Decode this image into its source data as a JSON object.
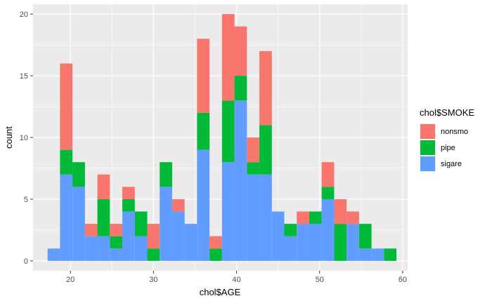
{
  "chart_data": {
    "type": "bar",
    "subtype": "stacked-histogram",
    "xlabel": "chol$AGE",
    "ylabel": "count",
    "xlim": [
      15.5,
      60.6
    ],
    "ylim": [
      -0.8,
      20.8
    ],
    "x_ticks": [
      20,
      30,
      40,
      50,
      60
    ],
    "y_ticks": [
      0,
      5,
      10,
      15,
      20
    ],
    "grid": true,
    "legend": {
      "title": "chol$SMOKE",
      "position": "right"
    },
    "bin_width": 1.5,
    "bin_centers": [
      18.0,
      19.5,
      21.0,
      22.5,
      24.0,
      25.5,
      27.0,
      28.5,
      30.0,
      31.5,
      33.0,
      34.5,
      36.0,
      37.5,
      39.0,
      40.5,
      42.0,
      43.5,
      45.0,
      46.5,
      48.0,
      49.5,
      51.0,
      52.5,
      54.0,
      55.5,
      57.0,
      58.5
    ],
    "series": [
      {
        "name": "nonsmo",
        "color": "#F8766D",
        "values": [
          0,
          7,
          0,
          1,
          2,
          1,
          1,
          0,
          2,
          0,
          1,
          0,
          6,
          1,
          7,
          4,
          2,
          6,
          0,
          0,
          1,
          0,
          2,
          2,
          1,
          0,
          0,
          0
        ]
      },
      {
        "name": "pipe",
        "color": "#00BA38",
        "values": [
          0,
          2,
          2,
          0,
          3,
          1,
          1,
          2,
          1,
          2,
          0,
          0,
          3,
          1,
          5,
          2,
          1,
          4,
          0,
          1,
          0,
          1,
          1,
          3,
          0,
          2,
          0,
          0
        ]
      },
      {
        "name": "sigare",
        "color": "#619CFF",
        "values": [
          1,
          7,
          6,
          2,
          2,
          1,
          4,
          2,
          0,
          6,
          4,
          3,
          9,
          0,
          8,
          13,
          7,
          7,
          4,
          2,
          3,
          3,
          5,
          0,
          3,
          1,
          1,
          0
        ]
      }
    ],
    "extra_pipe_bar": {
      "x": 58.5,
      "value": 1
    }
  }
}
